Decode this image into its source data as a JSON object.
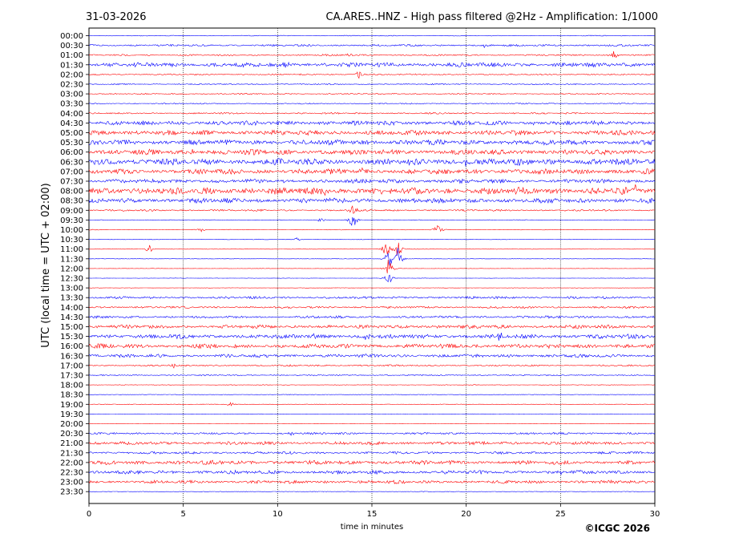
{
  "header": {
    "date": "31-03-2026",
    "title": "CA.ARES..HNZ - High pass filtered @2Hz - Amplification: 1/1000"
  },
  "footer": {
    "copyright": "©ICGC 2026"
  },
  "colors": {
    "even_hour": "#0000ff",
    "odd_hour": "#ff0000",
    "grid": "#000000",
    "background": "#ffffff"
  },
  "chart_data": {
    "type": "line",
    "subtype": "helicorder",
    "title": "CA.ARES..HNZ - High pass filtered @2Hz - Amplification: 1/1000",
    "xlabel": "time in minutes",
    "ylabel": "UTC (local time = UTC + 02:00)",
    "xlim": [
      0,
      30
    ],
    "x_ticks": [
      0,
      5,
      10,
      15,
      20,
      25,
      30
    ],
    "grid": "vertical dotted lines every 5 minutes",
    "rows": [
      "00:00",
      "00:30",
      "01:00",
      "01:30",
      "02:00",
      "02:30",
      "03:00",
      "03:30",
      "04:00",
      "04:30",
      "05:00",
      "05:30",
      "06:00",
      "06:30",
      "07:00",
      "07:30",
      "08:00",
      "08:30",
      "09:00",
      "09:30",
      "10:00",
      "10:30",
      "11:00",
      "11:30",
      "12:00",
      "12:30",
      "13:00",
      "13:30",
      "14:00",
      "14:30",
      "15:00",
      "15:30",
      "16:00",
      "16:30",
      "17:00",
      "17:30",
      "18:00",
      "18:30",
      "19:00",
      "19:30",
      "20:00",
      "20:30",
      "21:00",
      "21:30",
      "22:00",
      "22:30",
      "23:00",
      "23:30"
    ],
    "row_colors": [
      "blue",
      "blue",
      "red",
      "blue",
      "red",
      "blue",
      "red",
      "blue",
      "red",
      "blue",
      "red",
      "blue",
      "red",
      "blue",
      "red",
      "blue",
      "red",
      "blue",
      "red",
      "blue",
      "red",
      "blue",
      "red",
      "blue",
      "red",
      "blue",
      "red",
      "blue",
      "red",
      "blue",
      "red",
      "blue",
      "red",
      "blue",
      "red",
      "blue",
      "red",
      "blue",
      "red",
      "blue",
      "red",
      "blue",
      "red",
      "blue",
      "red",
      "blue",
      "red",
      "blue"
    ],
    "noise_amplitude": [
      0.4,
      1.0,
      0.8,
      2.2,
      0.7,
      0.6,
      0.6,
      0.6,
      0.8,
      2.2,
      2.4,
      2.6,
      2.6,
      3.2,
      2.6,
      2.0,
      3.4,
      2.4,
      0.9,
      0.3,
      0.3,
      0.3,
      0.2,
      0.2,
      0.2,
      0.2,
      0.2,
      1.2,
      1.0,
      1.2,
      1.8,
      2.2,
      2.2,
      1.6,
      0.8,
      0.6,
      0.3,
      0.3,
      0.3,
      0.2,
      0.2,
      1.0,
      1.6,
      1.2,
      2.0,
      1.8,
      1.6,
      0.3
    ],
    "events": [
      {
        "row": "00:30",
        "minute": 21.0,
        "amplitude": 3
      },
      {
        "row": "01:00",
        "minute": 13.8,
        "amplitude": 4
      },
      {
        "row": "01:00",
        "minute": 27.8,
        "amplitude": 8
      },
      {
        "row": "01:30",
        "minute": 10.3,
        "amplitude": 7
      },
      {
        "row": "02:00",
        "minute": 14.3,
        "amplitude": 6
      },
      {
        "row": "04:30",
        "minute": 23.5,
        "amplitude": 4
      },
      {
        "row": "06:00",
        "minute": 5.5,
        "amplitude": 5
      },
      {
        "row": "06:30",
        "minute": 1.2,
        "amplitude": 6
      },
      {
        "row": "06:30",
        "minute": 20.0,
        "amplitude": 6
      },
      {
        "row": "07:00",
        "minute": 14.5,
        "amplitude": 5
      },
      {
        "row": "08:00",
        "minute": 12.5,
        "amplitude": 6
      },
      {
        "row": "08:00",
        "minute": 29.0,
        "amplitude": 6
      },
      {
        "row": "09:00",
        "minute": 14.0,
        "amplitude": 10
      },
      {
        "row": "09:30",
        "minute": 12.3,
        "amplitude": 4
      },
      {
        "row": "09:30",
        "minute": 14.0,
        "amplitude": 16
      },
      {
        "row": "10:00",
        "minute": 6.0,
        "amplitude": 4
      },
      {
        "row": "10:00",
        "minute": 18.5,
        "amplitude": 9
      },
      {
        "row": "10:30",
        "minute": 11.0,
        "amplitude": 3
      },
      {
        "row": "11:00",
        "minute": 3.2,
        "amplitude": 6
      },
      {
        "row": "11:00",
        "minute": 15.8,
        "amplitude": 20
      },
      {
        "row": "11:00",
        "minute": 16.4,
        "amplitude": 18
      },
      {
        "row": "11:30",
        "minute": 15.9,
        "amplitude": 20
      },
      {
        "row": "11:30",
        "minute": 16.4,
        "amplitude": 18
      },
      {
        "row": "12:00",
        "minute": 15.9,
        "amplitude": 18
      },
      {
        "row": "12:30",
        "minute": 15.9,
        "amplitude": 12
      },
      {
        "row": "15:30",
        "minute": 12.0,
        "amplitude": 5
      },
      {
        "row": "15:30",
        "minute": 14.7,
        "amplitude": 6
      },
      {
        "row": "15:30",
        "minute": 21.8,
        "amplitude": 5
      },
      {
        "row": "17:00",
        "minute": 4.5,
        "amplitude": 4
      },
      {
        "row": "19:00",
        "minute": 7.5,
        "amplitude": 5
      },
      {
        "row": "20:30",
        "minute": 10.7,
        "amplitude": 4
      },
      {
        "row": "22:30",
        "minute": 25.0,
        "amplitude": 4
      }
    ]
  }
}
